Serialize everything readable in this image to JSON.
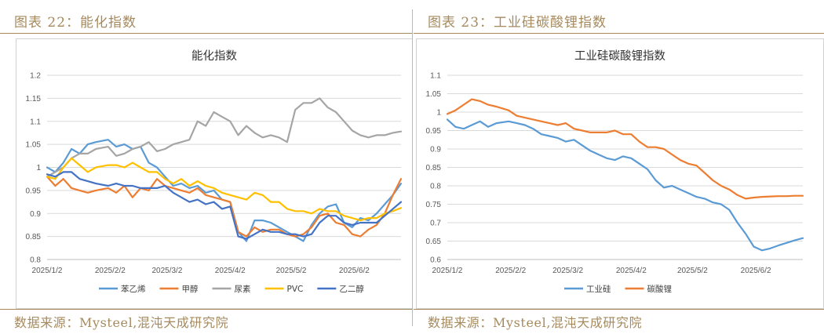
{
  "panels": [
    {
      "header": "图表 22：能化指数",
      "source": "数据来源：Mysteel,混沌天成研究院",
      "chart_data": {
        "type": "line",
        "title": "能化指数",
        "xlabel": "",
        "ylabel": "",
        "x_ticks": [
          "2025/1/2",
          "2025/2/2",
          "2025/3/2",
          "2025/4/2",
          "2025/5/2",
          "2025/6/2"
        ],
        "x": [
          "2025/1/2",
          "2025/1/6",
          "2025/1/10",
          "2025/1/14",
          "2025/1/18",
          "2025/1/22",
          "2025/1/26",
          "2025/2/1",
          "2025/2/5",
          "2025/2/9",
          "2025/2/13",
          "2025/2/17",
          "2025/2/21",
          "2025/2/25",
          "2025/3/1",
          "2025/3/5",
          "2025/3/9",
          "2025/3/13",
          "2025/3/17",
          "2025/3/21",
          "2025/3/25",
          "2025/3/29",
          "2025/4/2",
          "2025/4/6",
          "2025/4/10",
          "2025/4/14",
          "2025/4/18",
          "2025/4/22",
          "2025/4/26",
          "2025/4/30",
          "2025/5/4",
          "2025/5/8",
          "2025/5/12",
          "2025/5/16",
          "2025/5/20",
          "2025/5/24",
          "2025/5/28",
          "2025/6/1",
          "2025/6/5",
          "2025/6/9",
          "2025/6/13",
          "2025/6/17",
          "2025/6/21",
          "2025/6/25"
        ],
        "ylim": [
          0.8,
          1.2
        ],
        "y_ticks": [
          "0.8",
          "0.85",
          "0.9",
          "0.95",
          "1",
          "1.05",
          "1.1",
          "1.15",
          "1.2"
        ],
        "grid": true,
        "legend_position": "bottom",
        "series": [
          {
            "name": "苯乙烯",
            "color": "#5b9bd5",
            "values": [
              1.0,
              0.99,
              1.01,
              1.04,
              1.03,
              1.05,
              1.055,
              1.06,
              1.045,
              1.05,
              1.04,
              1.045,
              1.01,
              1.0,
              0.98,
              0.96,
              0.965,
              0.955,
              0.96,
              0.945,
              0.95,
              0.93,
              0.925,
              0.86,
              0.84,
              0.885,
              0.885,
              0.88,
              0.87,
              0.86,
              0.85,
              0.84,
              0.875,
              0.9,
              0.915,
              0.92,
              0.88,
              0.87,
              0.89,
              0.885,
              0.9,
              0.92,
              0.94,
              0.965
            ]
          },
          {
            "name": "甲醇",
            "color": "#ed7d31",
            "values": [
              0.98,
              0.96,
              0.975,
              0.955,
              0.95,
              0.945,
              0.95,
              0.955,
              0.945,
              0.96,
              0.935,
              0.955,
              0.95,
              0.975,
              0.96,
              0.955,
              0.95,
              0.945,
              0.955,
              0.94,
              0.935,
              0.93,
              0.925,
              0.86,
              0.85,
              0.87,
              0.86,
              0.865,
              0.865,
              0.855,
              0.85,
              0.855,
              0.87,
              0.895,
              0.9,
              0.88,
              0.875,
              0.855,
              0.85,
              0.865,
              0.875,
              0.9,
              0.94,
              0.975
            ]
          },
          {
            "name": "尿素",
            "color": "#a5a5a5",
            "values": [
              0.98,
              0.99,
              1.0,
              1.02,
              1.03,
              1.03,
              1.04,
              1.045,
              1.025,
              1.03,
              1.04,
              1.045,
              1.055,
              1.035,
              1.04,
              1.05,
              1.055,
              1.06,
              1.1,
              1.09,
              1.12,
              1.11,
              1.1,
              1.07,
              1.09,
              1.075,
              1.065,
              1.07,
              1.065,
              1.055,
              1.125,
              1.14,
              1.14,
              1.15,
              1.13,
              1.12,
              1.1,
              1.08,
              1.07,
              1.065,
              1.07,
              1.07,
              1.075,
              1.078
            ]
          },
          {
            "name": "PVC",
            "color": "#ffc000",
            "values": [
              0.98,
              0.975,
              1.0,
              1.02,
              1.005,
              0.99,
              1.0,
              1.005,
              1.005,
              1.0,
              1.01,
              1.0,
              0.99,
              0.99,
              0.975,
              0.965,
              0.975,
              0.96,
              0.97,
              0.96,
              0.955,
              0.945,
              0.94,
              0.935,
              0.93,
              0.945,
              0.94,
              0.925,
              0.925,
              0.91,
              0.905,
              0.905,
              0.9,
              0.91,
              0.905,
              0.905,
              0.895,
              0.89,
              0.885,
              0.89,
              0.89,
              0.9,
              0.905,
              0.912
            ]
          },
          {
            "name": "乙二醇",
            "color": "#4472c4",
            "values": [
              0.985,
              0.98,
              0.99,
              0.99,
              0.975,
              0.97,
              0.965,
              0.96,
              0.965,
              0.96,
              0.96,
              0.955,
              0.955,
              0.955,
              0.96,
              0.945,
              0.935,
              0.925,
              0.93,
              0.92,
              0.925,
              0.91,
              0.915,
              0.85,
              0.845,
              0.855,
              0.865,
              0.86,
              0.86,
              0.855,
              0.855,
              0.85,
              0.855,
              0.88,
              0.895,
              0.895,
              0.88,
              0.875,
              0.88,
              0.88,
              0.88,
              0.895,
              0.91,
              0.925
            ]
          }
        ]
      }
    },
    {
      "header": "图表 23：工业硅碳酸锂指数",
      "source": "数据来源：Mysteel,混沌天成研究院",
      "chart_data": {
        "type": "line",
        "title": "工业硅碳酸锂指数",
        "xlabel": "",
        "ylabel": "",
        "x_ticks": [
          "2025/1/2",
          "2025/2/2",
          "2025/3/2",
          "2025/4/2",
          "2025/5/2",
          "2025/6/2"
        ],
        "x": [
          "2025/1/2",
          "2025/1/6",
          "2025/1/10",
          "2025/1/14",
          "2025/1/18",
          "2025/1/22",
          "2025/1/26",
          "2025/2/1",
          "2025/2/5",
          "2025/2/9",
          "2025/2/13",
          "2025/2/17",
          "2025/2/21",
          "2025/2/25",
          "2025/3/1",
          "2025/3/5",
          "2025/3/9",
          "2025/3/13",
          "2025/3/17",
          "2025/3/21",
          "2025/3/25",
          "2025/3/29",
          "2025/4/2",
          "2025/4/6",
          "2025/4/10",
          "2025/4/14",
          "2025/4/18",
          "2025/4/22",
          "2025/4/26",
          "2025/4/30",
          "2025/5/4",
          "2025/5/8",
          "2025/5/12",
          "2025/5/16",
          "2025/5/20",
          "2025/5/24",
          "2025/5/28",
          "2025/6/1",
          "2025/6/5",
          "2025/6/9",
          "2025/6/13",
          "2025/6/17",
          "2025/6/21",
          "2025/6/25"
        ],
        "ylim": [
          0.6,
          1.1
        ],
        "y_ticks": [
          "0.6",
          "0.65",
          "0.7",
          "0.75",
          "0.8",
          "0.85",
          "0.9",
          "0.95",
          "1",
          "1.05",
          "1.1"
        ],
        "grid": true,
        "legend_position": "bottom",
        "series": [
          {
            "name": "工业硅",
            "color": "#5b9bd5",
            "values": [
              0.98,
              0.96,
              0.955,
              0.965,
              0.975,
              0.96,
              0.97,
              0.975,
              0.97,
              0.965,
              0.955,
              0.94,
              0.935,
              0.93,
              0.92,
              0.925,
              0.91,
              0.895,
              0.885,
              0.875,
              0.87,
              0.88,
              0.875,
              0.86,
              0.845,
              0.815,
              0.795,
              0.8,
              0.79,
              0.78,
              0.77,
              0.765,
              0.755,
              0.75,
              0.735,
              0.7,
              0.67,
              0.635,
              0.625,
              0.63,
              0.638,
              0.645,
              0.652,
              0.658
            ]
          },
          {
            "name": "碳酸锂",
            "color": "#ed7d31",
            "values": [
              0.995,
              1.005,
              1.02,
              1.035,
              1.03,
              1.02,
              1.015,
              1.005,
              0.99,
              0.985,
              0.98,
              0.975,
              0.97,
              0.965,
              0.97,
              0.955,
              0.95,
              0.945,
              0.945,
              0.945,
              0.95,
              0.94,
              0.94,
              0.92,
              0.905,
              0.905,
              0.9,
              0.885,
              0.87,
              0.86,
              0.855,
              0.835,
              0.815,
              0.8,
              0.79,
              0.775,
              0.765,
              0.768,
              0.77,
              0.771,
              0.772,
              0.772,
              0.773,
              0.773
            ]
          }
        ]
      }
    }
  ]
}
